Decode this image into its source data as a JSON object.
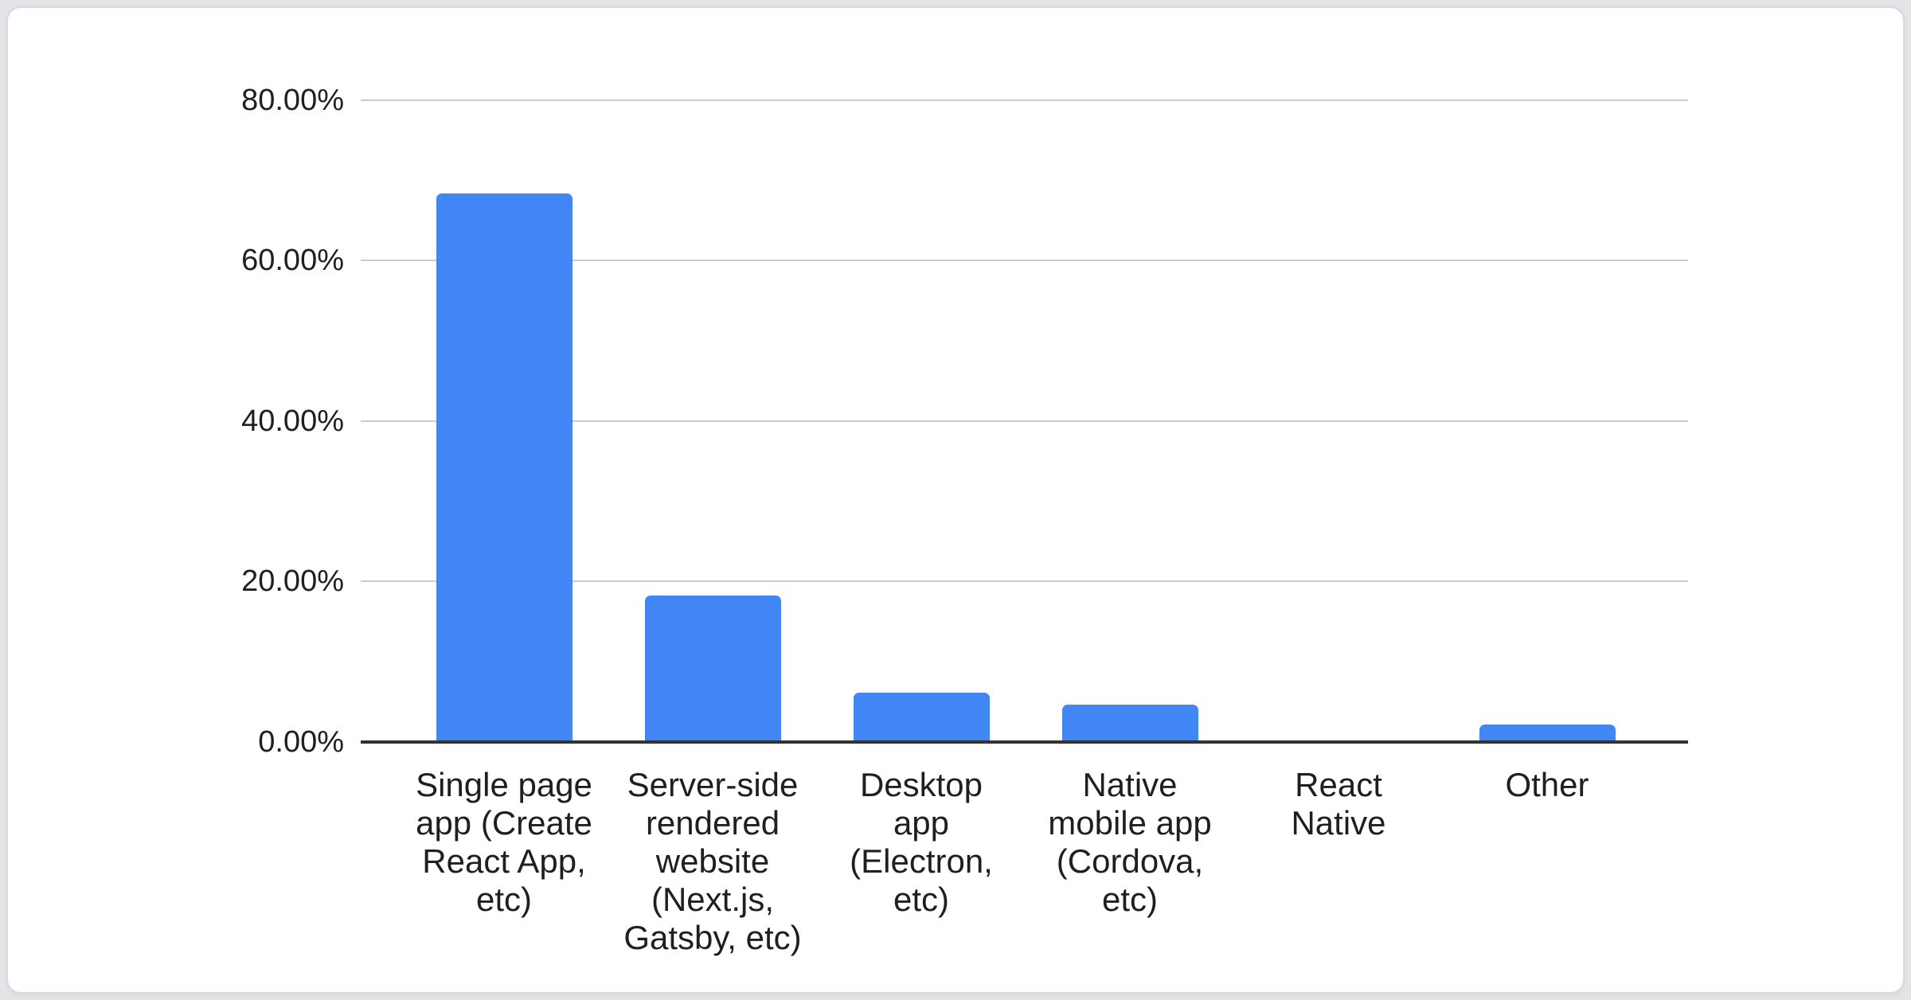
{
  "chart_data": {
    "type": "bar",
    "title": "",
    "xlabel": "",
    "ylabel": "",
    "categories": [
      "Single page\napp (Create\nReact App,\netc)",
      "Server-side\nrendered\nwebsite\n(Next.js,\nGatsby, etc)",
      "Desktop\napp\n(Electron,\netc)",
      "Native\nmobile app\n(Cordova,\netc)",
      "React\nNative",
      "Other"
    ],
    "values": [
      68.4,
      18.3,
      6.2,
      4.7,
      0,
      2.2
    ],
    "value_unit": "percent",
    "ylim": [
      0,
      80
    ],
    "yticks": [
      {
        "label": "80.00%",
        "value": 80
      },
      {
        "label": "60.00%",
        "value": 60
      },
      {
        "label": "40.00%",
        "value": 40
      },
      {
        "label": "20.00%",
        "value": 20
      },
      {
        "label": "0.00%",
        "value": 0
      }
    ],
    "legend": "none",
    "grid": true,
    "colors": {
      "bar": "#4285f4",
      "gridline": "#cccccc",
      "baseline": "#333333",
      "text": "#1f1f1f",
      "card_background": "#ffffff",
      "page_background": "#e2e4e7"
    }
  }
}
